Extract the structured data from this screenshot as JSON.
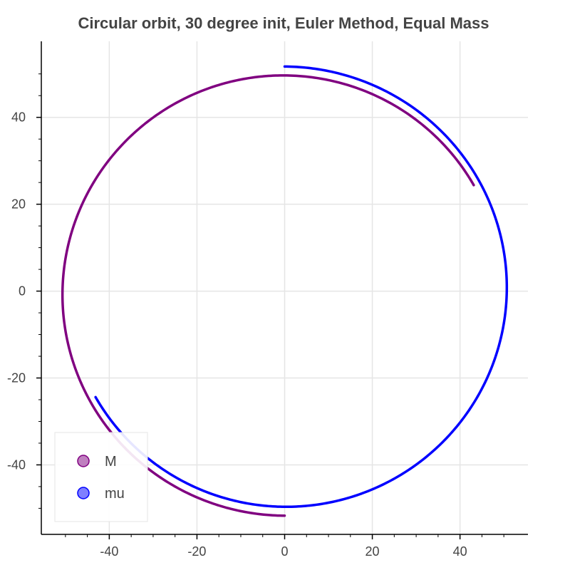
{
  "chart_data": {
    "type": "line",
    "title": "Circular orbit, 30 degree init, Euler Method, Equal Mass",
    "xlabel": "",
    "ylabel": "",
    "xlim": [
      -55.5,
      55.5
    ],
    "ylim": [
      -56,
      57.5
    ],
    "x_ticks": [
      -40,
      -20,
      0,
      20,
      40
    ],
    "y_ticks": [
      -40,
      -20,
      0,
      20,
      40
    ],
    "grid": true,
    "legend_position": "bottom-left",
    "series": [
      {
        "name": "M",
        "color": "#800080",
        "orbit": {
          "center": [
            0,
            -0.5
          ],
          "start_radius": 49.8,
          "end_radius": 51.2,
          "start_angle_deg": 30,
          "end_angle_deg": 270
        }
      },
      {
        "name": "mu",
        "color": "#0000ff",
        "orbit": {
          "center": [
            0,
            0.5
          ],
          "start_radius": 49.8,
          "end_radius": 51.2,
          "start_angle_deg": 210,
          "end_angle_deg": 450
        }
      }
    ]
  }
}
